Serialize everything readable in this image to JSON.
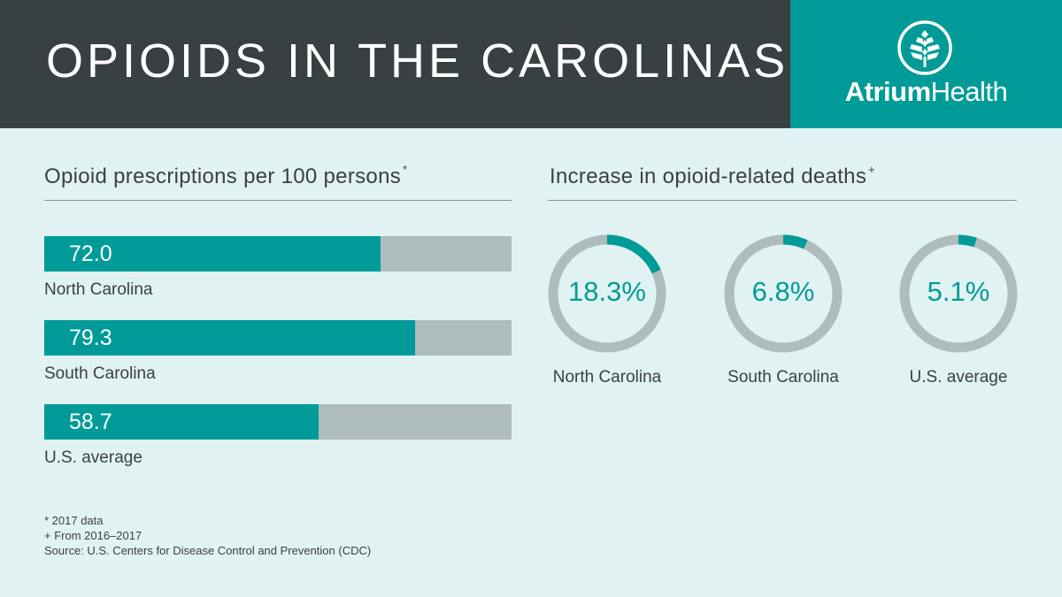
{
  "header": {
    "title": "OPIOIDS IN THE CAROLINAS",
    "brand_bold": "Atrium",
    "brand_regular": "Health"
  },
  "prescriptions": {
    "title": "Opioid prescriptions per 100 persons",
    "title_mark": "*"
  },
  "deaths": {
    "title": "Increase in opioid-related deaths",
    "title_mark": "+"
  },
  "chart_data": [
    {
      "type": "bar",
      "title": "Opioid prescriptions per 100 persons*",
      "categories": [
        "North Carolina",
        "South Carolina",
        "U.S. average"
      ],
      "values": [
        72.0,
        79.3,
        58.7
      ],
      "value_labels": [
        "72.0",
        "79.3",
        "58.7"
      ],
      "xlim": [
        0,
        100
      ],
      "orientation": "horizontal"
    },
    {
      "type": "pie",
      "title": "Increase in opioid-related deaths+",
      "categories": [
        "North Carolina",
        "South Carolina",
        "U.S. average"
      ],
      "values": [
        18.3,
        6.8,
        5.1
      ],
      "value_labels": [
        "18.3%",
        "6.8%",
        "5.1%"
      ],
      "style": "donut"
    }
  ],
  "footnotes": {
    "line1": "* 2017 data",
    "line2": "+ From 2016–2017",
    "line3": "Source: U.S. Centers for Disease Control and Prevention (CDC)"
  },
  "colors": {
    "accent": "#009b98",
    "header_dark": "#394043",
    "background": "#e1f2f2",
    "track": "#aebcbc"
  },
  "icons": {
    "logo": "tree-leaf-icon"
  }
}
